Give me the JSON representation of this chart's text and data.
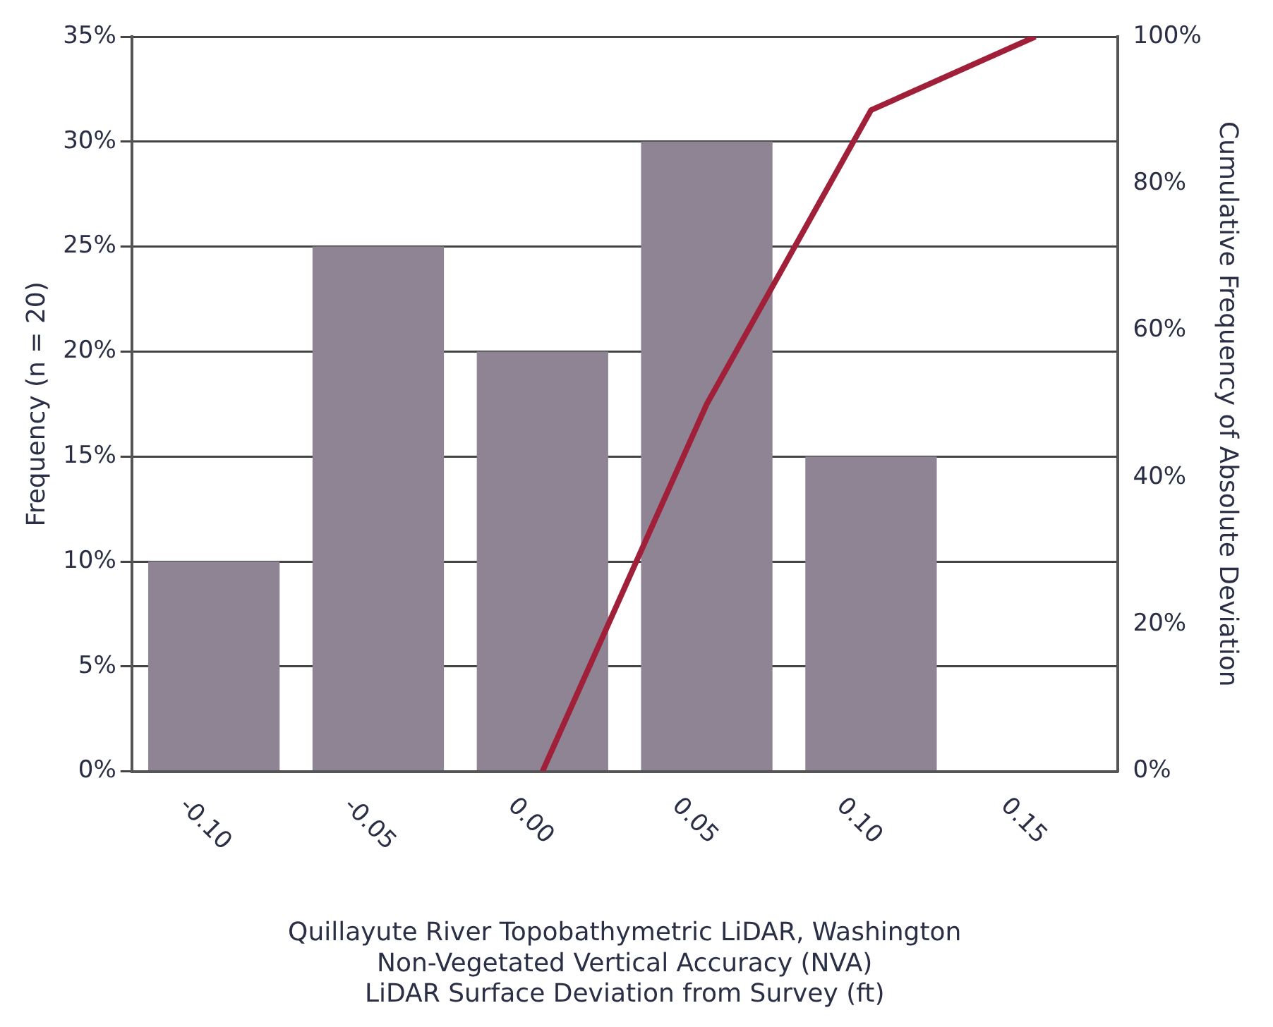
{
  "chart_data": {
    "type": "bar",
    "xlabel": "Quillayute River Topobathymetric LiDAR, Washington\nNon-Vegetated Vertical Accuracy (NVA)\nLiDAR Surface Deviation from Survey (ft)",
    "ylabel": "Frequency (n = 20)",
    "y2label": "Cumulative Frequency of Absolute Deviation",
    "categories": [
      "-0.10",
      "-0.05",
      "0.00",
      "0.05",
      "0.10",
      "0.15"
    ],
    "series": [
      {
        "color": "#8e8494",
        "values": [
          10,
          25,
          20,
          30,
          15,
          null
        ]
      },
      {
        "type": "line",
        "axis": "y2",
        "color": "#a0203a",
        "values": [
          null,
          null,
          0,
          50,
          90,
          100
        ]
      }
    ],
    "ylim": [
      0,
      35
    ],
    "yticks": [
      {
        "value": 0,
        "label": "0%"
      },
      {
        "value": 5,
        "label": "5%"
      },
      {
        "value": 10,
        "label": "10%"
      },
      {
        "value": 15,
        "label": "15%"
      },
      {
        "value": 20,
        "label": "20%"
      },
      {
        "value": 25,
        "label": "25%"
      },
      {
        "value": 30,
        "label": "30%"
      },
      {
        "value": 35,
        "label": "35%"
      }
    ],
    "y2lim": [
      0,
      100
    ],
    "y2ticks": [
      {
        "value": 0,
        "label": "0%"
      },
      {
        "value": 20,
        "label": "20%"
      },
      {
        "value": 40,
        "label": "40%"
      },
      {
        "value": 60,
        "label": "60%"
      },
      {
        "value": 80,
        "label": "80%"
      },
      {
        "value": 100,
        "label": "100%"
      }
    ],
    "grid": "y",
    "legend": false,
    "marker": "none",
    "line_style": "solid"
  }
}
